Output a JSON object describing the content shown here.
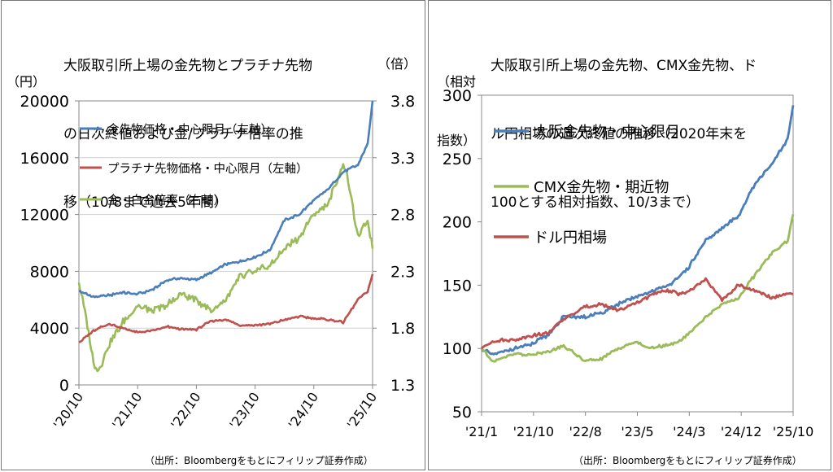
{
  "colors": {
    "blue": "#4a7ebb",
    "red": "#c0504d",
    "green": "#9bbb59",
    "grid": "#d0d0d0"
  },
  "chart_data": [
    {
      "type": "line",
      "title_lines": [
        "大阪取引所上場の金先物とプラチナ先物",
        "の日次終値および金/プラチナ倍率の推",
        "移（10/8まで過去5年間）"
      ],
      "ylabel": "（円）",
      "y2label": "（倍）",
      "ylim": [
        0,
        20000
      ],
      "y2lim": [
        1.3,
        3.8
      ],
      "yticks": [
        "0",
        "4000",
        "8000",
        "12000",
        "16000",
        "20000"
      ],
      "y2ticks": [
        "1.3",
        "1.8",
        "2.3",
        "2.8",
        "3.3",
        "3.8"
      ],
      "xticks": [
        "'20/10",
        "'21/10",
        "'22/10",
        "'23/10",
        "'24/10",
        "'25/10"
      ],
      "grid": "horizontal",
      "legend_position": "top-left",
      "series": [
        {
          "name": "金先物価格・中心限月（左軸）",
          "axis": "left",
          "color": "blue",
          "x": [
            "2020-10",
            "2021-01",
            "2021-04",
            "2021-07",
            "2021-10",
            "2022-01",
            "2022-04",
            "2022-07",
            "2022-10",
            "2023-01",
            "2023-04",
            "2023-07",
            "2023-10",
            "2024-01",
            "2024-04",
            "2024-07",
            "2024-10",
            "2025-01",
            "2025-04",
            "2025-07",
            "2025-09",
            "2025-10"
          ],
          "values": [
            6600,
            6200,
            6300,
            6500,
            6400,
            6700,
            7400,
            7500,
            7400,
            7900,
            8500,
            8700,
            9000,
            9500,
            11600,
            12000,
            13000,
            13800,
            15000,
            15500,
            17000,
            20000
          ]
        },
        {
          "name": "プラチナ先物価格・中心限月（左軸）",
          "axis": "left",
          "color": "red",
          "x": [
            "2020-10",
            "2021-01",
            "2021-04",
            "2021-07",
            "2021-10",
            "2022-01",
            "2022-04",
            "2022-07",
            "2022-10",
            "2023-01",
            "2023-04",
            "2023-07",
            "2023-10",
            "2024-01",
            "2024-04",
            "2024-07",
            "2024-10",
            "2025-01",
            "2025-04",
            "2025-07",
            "2025-09",
            "2025-10"
          ],
          "values": [
            3000,
            3800,
            4300,
            4000,
            3700,
            3800,
            4100,
            3900,
            3900,
            4500,
            4600,
            4200,
            4200,
            4300,
            4600,
            4800,
            4700,
            4600,
            4400,
            6000,
            6600,
            7800
          ]
        },
        {
          "name": "金・白金倍率（右軸）",
          "axis": "right",
          "color": "green",
          "x": [
            "2020-10",
            "2020-11",
            "2021-01",
            "2021-02",
            "2021-04",
            "2021-07",
            "2021-10",
            "2022-01",
            "2022-04",
            "2022-07",
            "2022-10",
            "2023-01",
            "2023-04",
            "2023-07",
            "2023-10",
            "2024-01",
            "2024-04",
            "2024-07",
            "2024-10",
            "2025-01",
            "2025-04",
            "2025-05",
            "2025-07",
            "2025-09",
            "2025-10"
          ],
          "values": [
            2.2,
            2.0,
            1.5,
            1.42,
            1.65,
            1.85,
            2.0,
            1.95,
            2.0,
            2.1,
            2.05,
            1.95,
            2.05,
            2.25,
            2.3,
            2.35,
            2.5,
            2.6,
            2.8,
            2.9,
            3.25,
            3.1,
            2.6,
            2.75,
            2.5
          ]
        }
      ],
      "source": "（出所：Bloombergをもとにフィリップ証券作成）"
    },
    {
      "type": "line",
      "title_lines": [
        "大阪取引所上場の金先物、CMX金先物、ド",
        "ル円相場の週次終値の推移（2020年末を",
        "100とする相対指数、10/3まで）"
      ],
      "ylabel_lines": [
        "（相対",
        "指数）"
      ],
      "ylim": [
        50,
        300
      ],
      "yticks": [
        "50",
        "100",
        "150",
        "200",
        "250",
        "300"
      ],
      "xticks": [
        "'21/1",
        "'21/10",
        "'22/8",
        "'23/5",
        "'24/3",
        "'24/12",
        "'25/10"
      ],
      "grid": "none",
      "legend_position": "top-left",
      "series": [
        {
          "name": "大阪金先物・中心限月",
          "color": "blue",
          "x": [
            "2021-01",
            "2021-03",
            "2021-07",
            "2021-10",
            "2022-01",
            "2022-04",
            "2022-08",
            "2022-11",
            "2023-02",
            "2023-05",
            "2023-08",
            "2023-11",
            "2024-01",
            "2024-03",
            "2024-06",
            "2024-09",
            "2024-12",
            "2025-03",
            "2025-06",
            "2025-09",
            "2025-10"
          ],
          "values": [
            100,
            95,
            100,
            103,
            110,
            125,
            125,
            128,
            135,
            140,
            145,
            150,
            155,
            165,
            185,
            195,
            205,
            230,
            245,
            265,
            292
          ]
        },
        {
          "name": "CMX金先物・期近物",
          "color": "green",
          "x": [
            "2021-01",
            "2021-03",
            "2021-07",
            "2021-10",
            "2022-01",
            "2022-04",
            "2022-08",
            "2022-11",
            "2023-02",
            "2023-05",
            "2023-08",
            "2023-11",
            "2024-01",
            "2024-03",
            "2024-06",
            "2024-09",
            "2024-12",
            "2025-03",
            "2025-06",
            "2025-09",
            "2025-10"
          ],
          "values": [
            100,
            90,
            96,
            95,
            97,
            102,
            90,
            92,
            100,
            105,
            100,
            103,
            105,
            112,
            125,
            135,
            140,
            158,
            175,
            185,
            206
          ]
        },
        {
          "name": "ドル円相場",
          "color": "red",
          "x": [
            "2021-01",
            "2021-03",
            "2021-07",
            "2021-10",
            "2022-01",
            "2022-04",
            "2022-08",
            "2022-11",
            "2023-02",
            "2023-05",
            "2023-08",
            "2023-11",
            "2024-01",
            "2024-03",
            "2024-06",
            "2024-09",
            "2024-12",
            "2025-03",
            "2025-06",
            "2025-09",
            "2025-10"
          ],
          "values": [
            100,
            106,
            107,
            110,
            112,
            123,
            133,
            135,
            130,
            135,
            142,
            146,
            143,
            145,
            155,
            138,
            150,
            146,
            140,
            143,
            143
          ]
        }
      ],
      "source": "（出所：Bloombergをもとにフィリップ証券作成）"
    }
  ]
}
